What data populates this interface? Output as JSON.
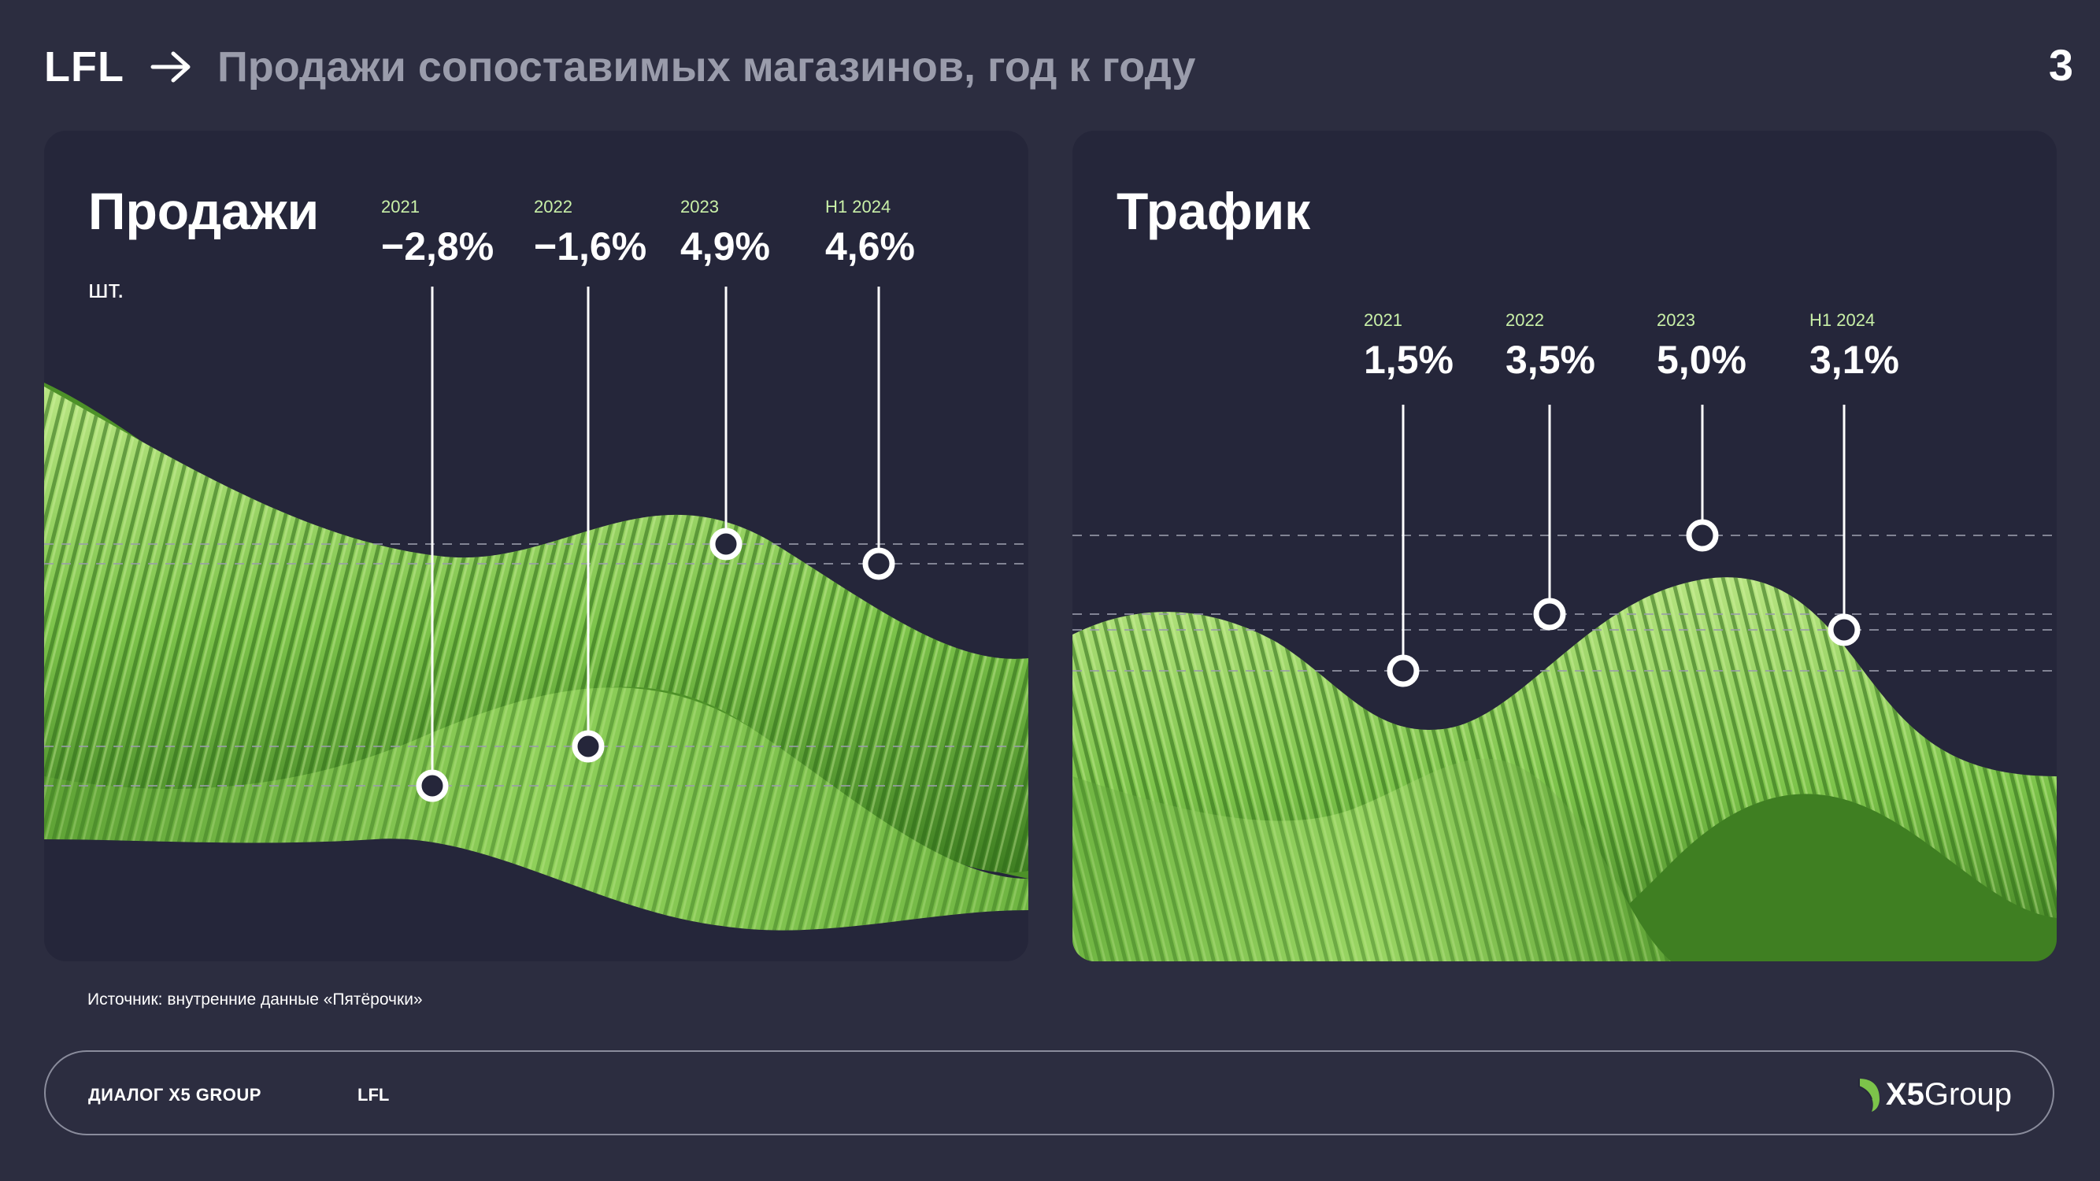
{
  "header": {
    "title": "LFL",
    "subtitle": "Продажи сопоставимых магазинов, год к году",
    "page": "3"
  },
  "sales": {
    "title": "Продажи",
    "unit": "шт.",
    "metrics": [
      {
        "year": "2021",
        "value": "−2,8%"
      },
      {
        "year": "2022",
        "value": "−1,6%"
      },
      {
        "year": "2023",
        "value": "4,9%"
      },
      {
        "year": "H1 2024",
        "value": "4,6%"
      }
    ]
  },
  "traffic": {
    "title": "Трафик",
    "metrics": [
      {
        "year": "2021",
        "value": "1,5%"
      },
      {
        "year": "2022",
        "value": "3,5%"
      },
      {
        "year": "2023",
        "value": "5,0%"
      },
      {
        "year": "H1 2024",
        "value": "3,1%"
      }
    ]
  },
  "source": "Источник: внутренние данные «Пятёрочки»",
  "footer": {
    "left": "ДИАЛОГ X5 GROUP",
    "mid": "LFL",
    "logo_x5": "X5",
    "logo_group": "Group"
  },
  "colors": {
    "background": "#2c2d40",
    "panel": "#25263a",
    "green": "#7cc34a",
    "green_light": "#b4e07e",
    "muted": "#9a9cab"
  }
}
